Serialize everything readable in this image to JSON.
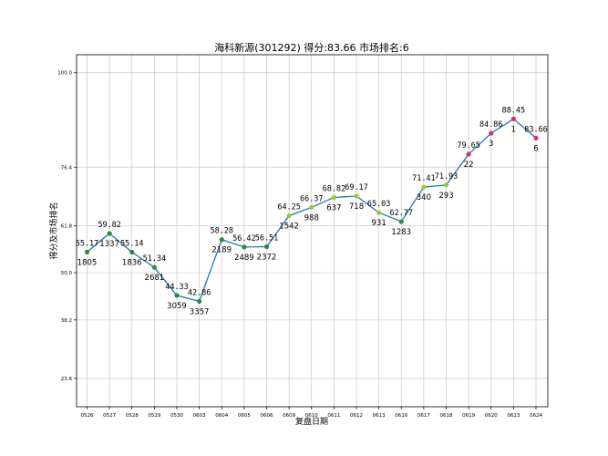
{
  "chart_data": {
    "type": "line",
    "title": "海科新源(301292) 得分:83.66  市场排名:6",
    "xlabel": "复盘日期",
    "ylabel": "得分及市场排名",
    "ylim": [
      16.5,
      104.5
    ],
    "yticks": [
      "100.0",
      "76.4",
      "61.8",
      "50.0",
      "38.2",
      "23.6"
    ],
    "ytick_values": [
      100.0,
      76.4,
      61.8,
      50.0,
      38.2,
      23.6
    ],
    "grid": true,
    "categories": [
      "0526",
      "0527",
      "0528",
      "0529",
      "0530",
      "0603",
      "0604",
      "0605",
      "0606",
      "0609",
      "0610",
      "0611",
      "0612",
      "0613",
      "0616",
      "0617",
      "0618",
      "0619",
      "0620",
      "0623",
      "0624"
    ],
    "value_labels": [
      "55.17",
      "59.82",
      "55.14",
      "51.34",
      "44.33",
      "42.86",
      "58.28",
      "56.42",
      "56.51",
      "64.25",
      "66.37",
      "68.82",
      "69.17",
      "65.03",
      "62.77",
      "71.41",
      "71.93",
      "79.65",
      "84.86",
      "88.45",
      "83.66"
    ],
    "values": [
      55.17,
      59.82,
      55.14,
      51.34,
      44.33,
      42.86,
      58.28,
      56.42,
      56.51,
      64.25,
      66.37,
      68.82,
      69.17,
      65.03,
      62.77,
      71.41,
      71.93,
      79.65,
      84.86,
      88.45,
      83.66
    ],
    "ranks": [
      "1805",
      "1337",
      "1836",
      "2681",
      "3059",
      "3357",
      "2189",
      "2489",
      "2372",
      "1542",
      "988",
      "637",
      "718",
      "931",
      "1283",
      "340",
      "293",
      "22",
      "3",
      "1",
      "6"
    ],
    "line_color": "#1f77b4",
    "marker_colors": [
      "#2a8c3c",
      "#2a8c3c",
      "#2a8c3c",
      "#2a8c3c",
      "#2a8c3c",
      "#2a8c3c",
      "#2a8c3c",
      "#2a8c3c",
      "#2a8c3c",
      "#9acd32",
      "#9acd32",
      "#9acd32",
      "#9acd32",
      "#9acd32",
      "#2a8c3c",
      "#9acd32",
      "#9acd32",
      "#d6336c",
      "#d6336c",
      "#d6336c",
      "#d6336c"
    ]
  }
}
